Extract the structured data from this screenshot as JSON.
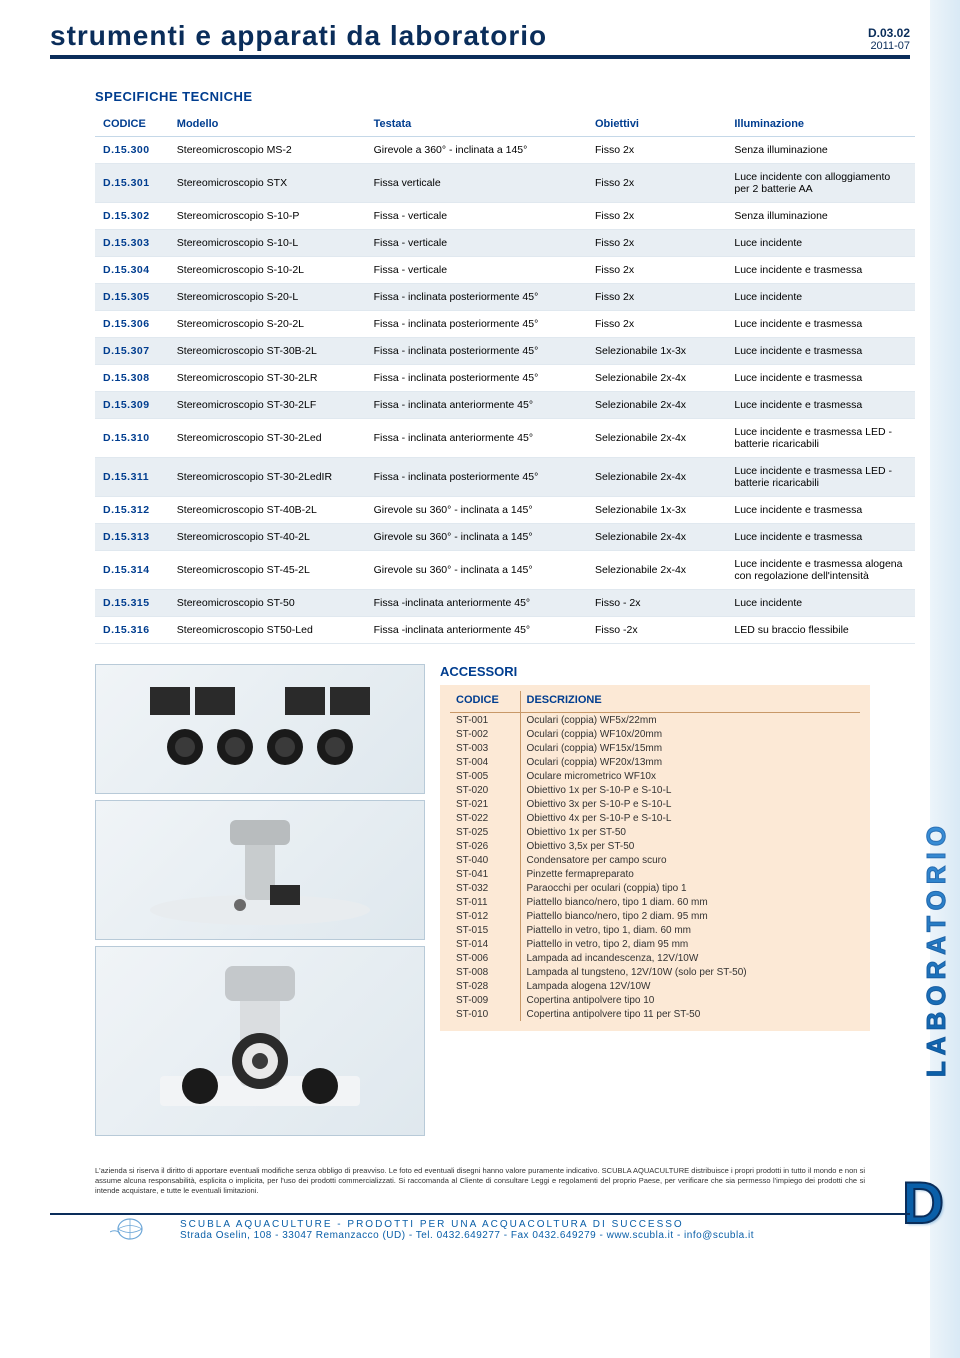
{
  "header": {
    "title": "strumenti e apparati da laboratorio",
    "doc_code": "D.03.02",
    "doc_date": "2011-07"
  },
  "section_title": "SPECIFICHE TECNICHE",
  "table": {
    "columns": [
      "CODICE",
      "Modello",
      "Testata",
      "Obiettivi",
      "Illuminazione"
    ],
    "rows": [
      [
        "D.15.300",
        "Stereomicroscopio MS-2",
        "Girevole a 360° - inclinata a 145°",
        "Fisso 2x",
        "Senza illuminazione"
      ],
      [
        "D.15.301",
        "Stereomicroscopio STX",
        "Fissa verticale",
        "Fisso 2x",
        "Luce incidente con alloggiamento per 2 batterie AA"
      ],
      [
        "D.15.302",
        "Stereomicroscopio S-10-P",
        "Fissa - verticale",
        "Fisso 2x",
        "Senza illuminazione"
      ],
      [
        "D.15.303",
        "Stereomicroscopio S-10-L",
        "Fissa - verticale",
        "Fisso 2x",
        "Luce incidente"
      ],
      [
        "D.15.304",
        "Stereomicroscopio S-10-2L",
        "Fissa - verticale",
        "Fisso 2x",
        "Luce incidente e trasmessa"
      ],
      [
        "D.15.305",
        "Stereomicroscopio S-20-L",
        "Fissa - inclinata posteriormente 45°",
        "Fisso 2x",
        "Luce incidente"
      ],
      [
        "D.15.306",
        "Stereomicroscopio S-20-2L",
        "Fissa - inclinata posteriormente 45°",
        "Fisso 2x",
        "Luce incidente e trasmessa"
      ],
      [
        "D.15.307",
        "Stereomicroscopio ST-30B-2L",
        "Fissa - inclinata posteriormente 45°",
        "Selezionabile 1x-3x",
        "Luce incidente e trasmessa"
      ],
      [
        "D.15.308",
        "Stereomicroscopio ST-30-2LR",
        "Fissa - inclinata posteriormente 45°",
        "Selezionabile 2x-4x",
        "Luce incidente e trasmessa"
      ],
      [
        "D.15.309",
        "Stereomicroscopio ST-30-2LF",
        "Fissa - inclinata anteriormente 45°",
        "Selezionabile 2x-4x",
        "Luce incidente e trasmessa"
      ],
      [
        "D.15.310",
        "Stereomicroscopio ST-30-2Led",
        "Fissa - inclinata anteriormente 45°",
        "Selezionabile 2x-4x",
        "Luce incidente e trasmessa LED - batterie ricaricabili"
      ],
      [
        "D.15.311",
        "Stereomicroscopio ST-30-2LedIR",
        "Fissa - inclinata posteriormente 45°",
        "Selezionabile 2x-4x",
        "Luce incidente e trasmessa LED - batterie ricaricabili"
      ],
      [
        "D.15.312",
        "Stereomicroscopio ST-40B-2L",
        "Girevole su 360° - inclinata a 145°",
        "Selezionabile 1x-3x",
        "Luce incidente e trasmessa"
      ],
      [
        "D.15.313",
        "Stereomicroscopio ST-40-2L",
        "Girevole su 360° - inclinata a 145°",
        "Selezionabile 2x-4x",
        "Luce incidente e trasmessa"
      ],
      [
        "D.15.314",
        "Stereomicroscopio ST-45-2L",
        "Girevole su 360° - inclinata a 145°",
        "Selezionabile 2x-4x",
        "Luce incidente e trasmessa alogena con regolazione dell'intensità"
      ],
      [
        "D.15.315",
        "Stereomicroscopio ST-50",
        "Fissa -inclinata anteriormente 45°",
        "Fisso - 2x",
        "Luce incidente"
      ],
      [
        "D.15.316",
        "Stereomicroscopio ST50-Led",
        "Fissa -inclinata anteriormente 45°",
        "Fisso -2x",
        "LED su braccio flessibile"
      ]
    ],
    "col_widths": [
      "9%",
      "24%",
      "27%",
      "17%",
      "23%"
    ],
    "alt_color": "#e8eef3",
    "border_color": "#e0e8ef"
  },
  "accessories": {
    "title": "ACCESSORI",
    "columns": [
      "CODICE",
      "DESCRIZIONE"
    ],
    "rows": [
      [
        "ST-001",
        "Oculari (coppia) WF5x/22mm"
      ],
      [
        "ST-002",
        "Oculari (coppia) WF10x/20mm"
      ],
      [
        "ST-003",
        "Oculari (coppia) WF15x/15mm"
      ],
      [
        "ST-004",
        "Oculari (coppia) WF20x/13mm"
      ],
      [
        "ST-005",
        "Oculare micrometrico WF10x"
      ],
      [
        "ST-020",
        "Obiettivo 1x per S-10-P e S-10-L"
      ],
      [
        "ST-021",
        "Obiettivo 3x per S-10-P e S-10-L"
      ],
      [
        "ST-022",
        "Obiettivo 4x per S-10-P e S-10-L"
      ],
      [
        "ST-025",
        "Obiettivo 1x per ST-50"
      ],
      [
        "ST-026",
        "Obiettivo 3,5x per ST-50"
      ],
      [
        "ST-040",
        "Condensatore per campo scuro"
      ],
      [
        "ST-041",
        "Pinzette fermapreparato"
      ],
      [
        "ST-032",
        "Paraocchi per oculari (coppia) tipo 1"
      ],
      [
        "ST-011",
        "Piattello bianco/nero, tipo 1 diam. 60 mm"
      ],
      [
        "ST-012",
        "Piattello bianco/nero, tipo 2 diam. 95 mm"
      ],
      [
        "ST-015",
        "Piattello in vetro, tipo 1, diam. 60 mm"
      ],
      [
        "ST-014",
        "Piattello in vetro, tipo 2, diam 95 mm"
      ],
      [
        "ST-006",
        "Lampada ad incandescenza, 12V/10W"
      ],
      [
        "ST-008",
        "Lampada al tungsteno, 12V/10W (solo per ST-50)"
      ],
      [
        "ST-028",
        "Lampada alogena 12V/10W"
      ],
      [
        "ST-009",
        "Copertina antipolvere tipo 10"
      ],
      [
        "ST-010",
        "Copertina antipolvere tipo 11 per ST-50"
      ]
    ],
    "bg_color": "#fce9d6"
  },
  "side": {
    "label": "LABORATORIO",
    "letter": "D"
  },
  "disclaimer": "L'azienda si riserva il diritto di apportare eventuali modifiche senza obbligo di preavviso. Le foto ed eventuali disegni hanno valore puramente indicativo. SCUBLA AQUACULTURE distribuisce i propri prodotti in tutto il mondo e non si assume alcuna responsabilità, esplicita o implicita, per l'uso dei prodotti commercializzati. Si raccomanda al Cliente di consultare Leggi e regolamenti del proprio Paese, per verificare che sia permesso l'impiego dei prodotti che si intende acquistare, e tutte le eventuali limitazioni.",
  "footer": {
    "line1": "SCUBLA AQUACULTURE - PRODOTTI PER UNA ACQUACOLTURA DI SUCCESSO",
    "line2": "Strada Oselin, 108 - 33047 Remanzacco (UD) - Tel. 0432.649277 - Fax 0432.649279 - www.scubla.it - info@scubla.it"
  },
  "colors": {
    "primary": "#0a2d5a",
    "link": "#003d8f",
    "accent": "#0a5fa8"
  }
}
